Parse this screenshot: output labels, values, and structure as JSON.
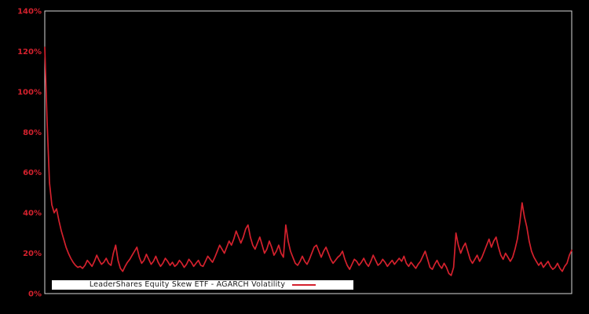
{
  "chart_data": {
    "type": "line",
    "title": "",
    "xlabel": "",
    "ylabel": "",
    "ylim": [
      0,
      140
    ],
    "y_tick_values": [
      0,
      20,
      40,
      60,
      80,
      100,
      120,
      140
    ],
    "y_tick_labels": [
      "0%",
      "20%",
      "40%",
      "60%",
      "80%",
      "100%",
      "120%",
      "140%"
    ],
    "x_axis_labels_visible": false,
    "grid": false,
    "legend_position": "inside-bottom-left",
    "colors": {
      "background": "#000000",
      "frame": "#d9d9d9",
      "axis_label": "#d4212d",
      "legend_background": "#ffffff",
      "legend_text": "#1a1a1a"
    },
    "series": [
      {
        "name": "LeaderShares Equity Skew ETF - AGARCH Volatility",
        "color": "#d4212d",
        "unit": "%",
        "values_pct": [
          122,
          85,
          55,
          44,
          40,
          42,
          36,
          31,
          27,
          23,
          20,
          17.5,
          15.5,
          14,
          13,
          13.5,
          12.5,
          14,
          16.5,
          15,
          13.5,
          16,
          19,
          16.5,
          14.5,
          15.5,
          17.5,
          15,
          14,
          20,
          24,
          16.5,
          12.5,
          11,
          13.5,
          15.5,
          17,
          19,
          21,
          23,
          18,
          15,
          16.5,
          19.5,
          17,
          14.5,
          16,
          18.5,
          15.5,
          13.5,
          15,
          17.5,
          16,
          14,
          15.5,
          13.5,
          14.5,
          16.5,
          15,
          13,
          14.5,
          17,
          15.5,
          13.5,
          15,
          16.5,
          14,
          13.5,
          16,
          18.5,
          17,
          15.5,
          18,
          21,
          24,
          22,
          20,
          23,
          26,
          24,
          27,
          31,
          28,
          25,
          28,
          32,
          34,
          28,
          24,
          22,
          25,
          28,
          24,
          20,
          22,
          26,
          23,
          19,
          21,
          24,
          20,
          18,
          34,
          26,
          21,
          18,
          15,
          14,
          16,
          18.5,
          16,
          14.5,
          17,
          20,
          23,
          24,
          21,
          18,
          21,
          23,
          20,
          17,
          15,
          16.5,
          18,
          19,
          21,
          17,
          14,
          12,
          14.5,
          17,
          16,
          14,
          15.5,
          17.5,
          15,
          13.5,
          16,
          19,
          16.5,
          14,
          15,
          17,
          15.5,
          13.5,
          15,
          16.5,
          14.5,
          16,
          17.5,
          16,
          18.5,
          15,
          13.5,
          15.5,
          14,
          12.5,
          14.5,
          16,
          18.5,
          21,
          17,
          13,
          12,
          14.5,
          16.5,
          14,
          12.5,
          15,
          13,
          10,
          9,
          13,
          30,
          24,
          20,
          23,
          25,
          21,
          17,
          15,
          17,
          19,
          16,
          18,
          21,
          24,
          27,
          23,
          26,
          28,
          23,
          19,
          17,
          20,
          18,
          16,
          18,
          22,
          27,
          35,
          45,
          38,
          33,
          26,
          21,
          18,
          16,
          14,
          15.5,
          13,
          14.5,
          16,
          13.5,
          12,
          13,
          15,
          12.5,
          11,
          13.5,
          15,
          19,
          21.5
        ]
      }
    ]
  }
}
